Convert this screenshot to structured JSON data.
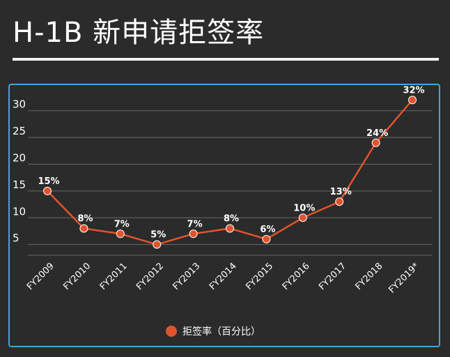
{
  "page": {
    "title": "H-1B 新申请拒签率"
  },
  "chart_data": {
    "type": "line",
    "title": "",
    "xlabel": "",
    "ylabel": "",
    "categories": [
      "FY2009",
      "FY2010",
      "FY2011",
      "FY2012",
      "FY2013",
      "FY2014",
      "FY2015",
      "FY2016",
      "FY2017",
      "FY2018",
      "FY2019*"
    ],
    "series": [
      {
        "name": "拒签率（百分比）",
        "values": [
          15,
          8,
          7,
          5,
          7,
          8,
          6,
          10,
          13,
          24,
          32
        ],
        "data_labels": [
          "15%",
          "8%",
          "7%",
          "5%",
          "7%",
          "8%",
          "6%",
          "10%",
          "13%",
          "24%",
          "32%"
        ]
      }
    ],
    "yticks": [
      5,
      10,
      15,
      20,
      25,
      30
    ],
    "ylim": [
      3,
      34
    ],
    "grid": true,
    "legend": "bottom-center",
    "colors": {
      "line": "#e0542c",
      "marker": "#e0542c",
      "grid": "#6a6a6a",
      "frame": "#4aa3d6",
      "background": "#2b2b2b"
    }
  }
}
